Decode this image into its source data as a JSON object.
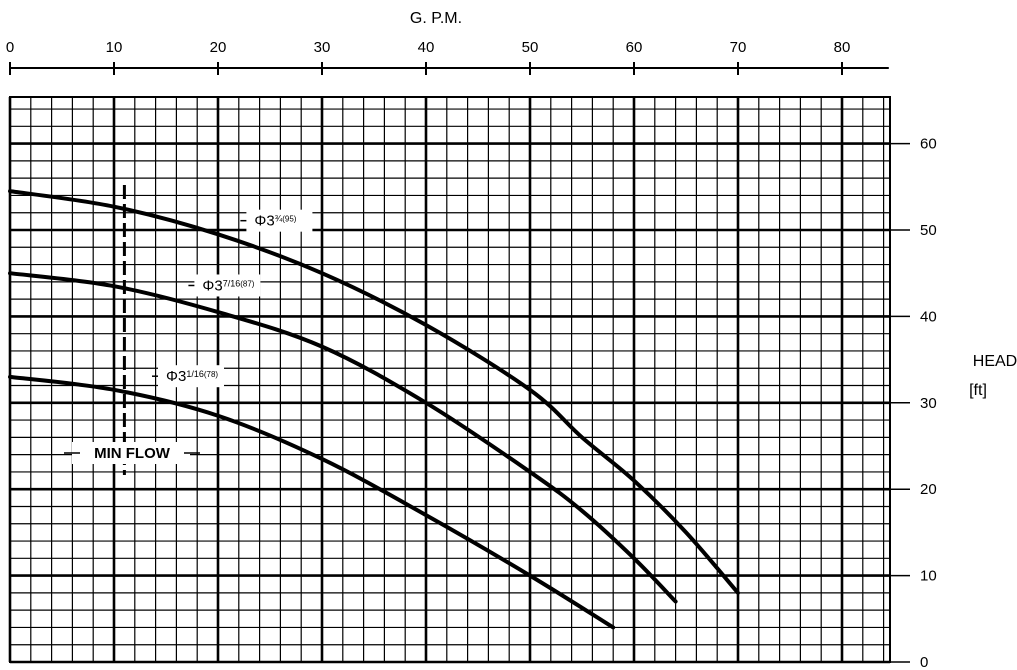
{
  "chart_data": {
    "type": "line",
    "xlabel": "G. P.M.",
    "ylabel_lines": [
      "HEAD",
      "[ft]"
    ],
    "x_ticks": [
      0,
      10,
      20,
      30,
      40,
      50,
      60,
      70,
      80
    ],
    "y_ticks": [
      0,
      10,
      20,
      30,
      40,
      50,
      60
    ],
    "xlim": [
      0,
      85
    ],
    "ylim": [
      0,
      67
    ],
    "grid": true,
    "x_axis_position": "top",
    "y_axis_position": "right",
    "series": [
      {
        "name": "Φ3¾(95)",
        "label_main": "Φ3",
        "label_frac": "¾",
        "label_mm": "(95)",
        "x": [
          0,
          10,
          20,
          30,
          40,
          50,
          55,
          60,
          65,
          70
        ],
        "y": [
          54.5,
          52.7,
          49.5,
          45,
          39,
          31.5,
          26,
          21,
          15,
          8
        ]
      },
      {
        "name": "Φ3 7/16(87)",
        "label_main": "Φ3",
        "label_frac": "7/16",
        "label_mm": "(87)",
        "x": [
          0,
          10,
          20,
          30,
          40,
          50,
          55,
          60,
          64
        ],
        "y": [
          45,
          43.5,
          40.5,
          36.5,
          30,
          22,
          17.5,
          12,
          7
        ]
      },
      {
        "name": "Φ3 1/16(78)",
        "label_main": "Φ3",
        "label_frac": "1/16",
        "label_mm": "(78)",
        "x": [
          0,
          10,
          20,
          30,
          40,
          50,
          58
        ],
        "y": [
          33,
          31.5,
          28.5,
          23.5,
          17,
          10,
          4
        ]
      }
    ],
    "annotations": [
      {
        "text": "MIN FLOW",
        "x": 11
      }
    ]
  }
}
